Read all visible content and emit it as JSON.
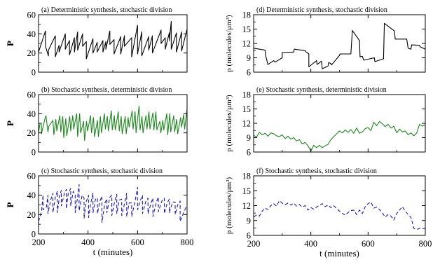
{
  "chart_data": [
    {
      "id": "a",
      "type": "line",
      "title": "(a) Deterministic synthesis, stochastic division",
      "ylabel": "P",
      "xlabel": "",
      "xlim": [
        200,
        800
      ],
      "ylim": [
        0,
        60
      ],
      "yticks": [
        0,
        20,
        40,
        60
      ],
      "xticks": [
        200,
        400,
        600,
        800
      ],
      "color": "#000000",
      "dash": false,
      "series": [
        {
          "x": [
            200,
            205,
            228,
            228,
            240,
            240,
            268,
            268,
            283,
            283,
            308,
            308,
            325,
            325,
            345,
            345,
            358,
            358,
            378,
            378,
            393,
            393,
            420,
            420,
            437,
            437,
            460,
            460,
            472,
            472,
            488,
            488,
            505,
            505,
            532,
            532,
            547,
            547,
            576,
            576,
            600,
            600,
            617,
            617,
            645,
            645,
            660,
            660,
            695,
            695,
            712,
            712,
            728,
            728,
            736,
            736,
            757,
            757,
            778,
            778,
            800
          ],
          "y": [
            21,
            25,
            43,
            27,
            17,
            23,
            38,
            16,
            28,
            21,
            40,
            24,
            33,
            18,
            36,
            21,
            42,
            23,
            40,
            27,
            32,
            14,
            35,
            20,
            31,
            21,
            33,
            21,
            32,
            24,
            43,
            29,
            34,
            19,
            37,
            19,
            38,
            27,
            36,
            16,
            49,
            19,
            42,
            17,
            37,
            23,
            38,
            20,
            44,
            30,
            36,
            24,
            41,
            33,
            53,
            24,
            41,
            21,
            42,
            22,
            45
          ]
        }
      ]
    },
    {
      "id": "b",
      "type": "line",
      "title": "(b) Stochastic synthesis, deterministic division",
      "ylabel": "P",
      "xlabel": "",
      "xlim": [
        200,
        800
      ],
      "ylim": [
        0,
        60
      ],
      "yticks": [
        0,
        20,
        40,
        60
      ],
      "xticks": [
        200,
        400,
        600,
        800
      ],
      "color": "#1a8a1a",
      "dash": false,
      "series": [
        {
          "x": [
            200,
            206,
            212,
            212,
            226,
            230,
            238,
            242,
            258,
            262,
            270,
            274,
            286,
            290,
            298,
            302,
            310,
            314,
            326,
            330,
            338,
            342,
            354,
            358,
            366,
            370,
            382,
            386,
            394,
            398,
            410,
            414,
            422,
            426,
            438,
            442,
            450,
            454,
            466,
            470,
            478,
            482,
            494,
            498,
            506,
            510,
            522,
            526,
            534,
            538,
            550,
            554,
            562,
            566,
            578,
            582,
            590,
            594,
            606,
            610,
            618,
            622,
            634,
            638,
            646,
            650,
            662,
            666,
            674,
            678,
            690,
            694,
            702,
            706,
            718,
            722,
            730,
            734,
            746,
            750,
            758,
            762,
            774,
            778,
            786,
            790,
            800
          ],
          "y": [
            20,
            30,
            30,
            19,
            35,
            38,
            21,
            27,
            33,
            18,
            34,
            22,
            38,
            21,
            37,
            15,
            35,
            17,
            37,
            22,
            38,
            24,
            40,
            16,
            40,
            20,
            32,
            12,
            32,
            22,
            38,
            20,
            36,
            16,
            33,
            16,
            37,
            20,
            40,
            24,
            37,
            22,
            43,
            23,
            38,
            23,
            42,
            22,
            37,
            19,
            37,
            19,
            36,
            26,
            43,
            24,
            42,
            20,
            48,
            23,
            37,
            20,
            38,
            24,
            42,
            24,
            41,
            23,
            42,
            23,
            32,
            20,
            33,
            23,
            40,
            18,
            40,
            21,
            38,
            21,
            34,
            19,
            36,
            26,
            39,
            24,
            45
          ]
        }
      ]
    },
    {
      "id": "c",
      "type": "line",
      "title": "(c) Stochastic synthesis, stochastic division",
      "ylabel": "P",
      "xlabel": "t (minutes)",
      "xlim": [
        200,
        800
      ],
      "ylim": [
        0,
        60
      ],
      "yticks": [
        0,
        20,
        40,
        60
      ],
      "xticks": [
        200,
        400,
        600,
        800
      ],
      "color": "#1a1acc",
      "dash": true,
      "series": [
        {
          "x": [
            200,
            212,
            218,
            218,
            232,
            238,
            238,
            250,
            258,
            258,
            268,
            276,
            276,
            285,
            292,
            292,
            304,
            312,
            312,
            320,
            330,
            330,
            340,
            348,
            348,
            358,
            364,
            364,
            376,
            384,
            384,
            392,
            402,
            402,
            412,
            420,
            420,
            430,
            438,
            438,
            448,
            456,
            456,
            468,
            476,
            476,
            488,
            496,
            496,
            508,
            516,
            516,
            526,
            536,
            536,
            548,
            556,
            556,
            566,
            576,
            576,
            590,
            600,
            600,
            612,
            620,
            620,
            634,
            642,
            642,
            656,
            662,
            662,
            676,
            684,
            684,
            698,
            708,
            708,
            720,
            728,
            728,
            742,
            752,
            752,
            762,
            772,
            772,
            786,
            800
          ],
          "y": [
            13,
            23,
            40,
            25,
            28,
            40,
            21,
            36,
            42,
            22,
            38,
            44,
            22,
            40,
            45,
            29,
            41,
            46,
            26,
            42,
            47,
            29,
            44,
            40,
            22,
            38,
            51,
            24,
            40,
            37,
            16,
            33,
            40,
            17,
            33,
            42,
            22,
            36,
            37,
            21,
            34,
            39,
            12,
            32,
            36,
            22,
            38,
            40,
            19,
            34,
            41,
            21,
            35,
            36,
            19,
            32,
            42,
            18,
            32,
            32,
            18,
            34,
            48,
            25,
            35,
            40,
            21,
            34,
            37,
            21,
            33,
            37,
            18,
            33,
            38,
            23,
            34,
            37,
            21,
            32,
            36,
            22,
            33,
            33,
            20,
            30,
            34,
            13,
            22,
            30
          ]
        }
      ]
    },
    {
      "id": "d",
      "type": "line",
      "title": "(d) Deterministic synthesis, stochastic division",
      "ylabel": "p (molecules/µm³)",
      "xlabel": "",
      "xlim": [
        200,
        800
      ],
      "ylim": [
        6,
        18
      ],
      "yticks": [
        6,
        9,
        12,
        15,
        18
      ],
      "xticks": [
        200,
        400,
        600,
        800
      ],
      "color": "#000000",
      "dash": false,
      "series": [
        {
          "x": [
            200,
            240,
            242,
            250,
            270,
            275,
            300,
            300,
            340,
            342,
            380,
            382,
            393,
            393,
            420,
            422,
            437,
            440,
            460,
            462,
            470,
            472,
            500,
            502,
            540,
            545,
            570,
            572,
            580,
            585,
            622,
            624,
            654,
            657,
            692,
            695,
            735,
            740,
            750,
            752,
            780,
            782,
            800
          ],
          "y": [
            11,
            10.6,
            9.5,
            7.6,
            8.4,
            8.1,
            9.0,
            10.1,
            10.2,
            10.8,
            10.5,
            10.3,
            9.8,
            7.1,
            8.4,
            7.6,
            8.3,
            6.7,
            7.3,
            8.0,
            7.8,
            7.5,
            9.5,
            9.8,
            9.8,
            14.7,
            12.6,
            9.2,
            9.3,
            8.5,
            9.0,
            8.2,
            8.8,
            16.2,
            14.6,
            12.9,
            12.9,
            11.0,
            10.8,
            11.7,
            11.6,
            11.3,
            10.8
          ]
        }
      ]
    },
    {
      "id": "e",
      "type": "line",
      "title": "(e) Stochastic synthesis, deterministic division",
      "ylabel": "p (molecules/µm³)",
      "xlabel": "",
      "xlim": [
        200,
        800
      ],
      "ylim": [
        6,
        18
      ],
      "yticks": [
        6,
        9,
        12,
        15,
        18
      ],
      "xticks": [
        200,
        400,
        600,
        800
      ],
      "color": "#1a8a1a",
      "dash": false,
      "series": [
        {
          "x": [
            200,
            210,
            220,
            230,
            240,
            250,
            260,
            270,
            280,
            290,
            300,
            310,
            320,
            330,
            340,
            350,
            360,
            370,
            380,
            390,
            400,
            410,
            420,
            430,
            440,
            450,
            460,
            470,
            480,
            490,
            500,
            510,
            520,
            530,
            540,
            550,
            560,
            570,
            580,
            590,
            600,
            610,
            620,
            630,
            640,
            650,
            660,
            670,
            680,
            690,
            700,
            710,
            720,
            730,
            740,
            750,
            760,
            770,
            780,
            790,
            800
          ],
          "y": [
            9.5,
            9.1,
            10.1,
            9.6,
            9.9,
            9.3,
            10.0,
            9.8,
            9.4,
            9.2,
            9.6,
            8.8,
            9.3,
            8.7,
            9.0,
            8.3,
            8.6,
            7.7,
            8.0,
            7.3,
            6.2,
            7.4,
            6.9,
            7.4,
            6.9,
            7.3,
            7.6,
            8.6,
            9.2,
            9.8,
            10.4,
            10.0,
            10.6,
            10.1,
            10.7,
            9.9,
            11.0,
            9.9,
            10.2,
            10.9,
            11.1,
            10.5,
            12.2,
            11.5,
            12.4,
            11.9,
            11.3,
            11.8,
            11.0,
            11.4,
            10.0,
            10.8,
            10.2,
            10.4,
            9.6,
            10.0,
            9.4,
            10.0,
            11.8,
            11.4,
            11.7
          ]
        }
      ]
    },
    {
      "id": "f",
      "type": "line",
      "title": "(f) Stochastic synthesis, stochastic division",
      "ylabel": "p (molecules/µm³)",
      "xlabel": "t (minutes)",
      "xlim": [
        200,
        800
      ],
      "ylim": [
        6,
        18
      ],
      "yticks": [
        6,
        9,
        12,
        15,
        18
      ],
      "xticks": [
        200,
        400,
        600,
        800
      ],
      "color": "#1a1acc",
      "dash": true,
      "series": [
        {
          "x": [
            200,
            210,
            220,
            230,
            240,
            250,
            260,
            270,
            280,
            290,
            300,
            310,
            320,
            330,
            340,
            350,
            360,
            370,
            380,
            390,
            400,
            410,
            420,
            430,
            440,
            450,
            460,
            470,
            480,
            490,
            500,
            510,
            520,
            530,
            540,
            550,
            560,
            570,
            580,
            590,
            600,
            610,
            620,
            630,
            640,
            650,
            660,
            670,
            680,
            690,
            700,
            710,
            720,
            730,
            740,
            750,
            760,
            770,
            780,
            790,
            800
          ],
          "y": [
            9.7,
            10.1,
            9.9,
            10.9,
            11.5,
            11.2,
            12.0,
            12.4,
            11.9,
            13.0,
            12.5,
            12.2,
            12.5,
            12.1,
            12.5,
            11.9,
            12.2,
            11.7,
            12.0,
            11.1,
            11.6,
            11.3,
            11.7,
            12.1,
            12.4,
            11.8,
            12.1,
            11.6,
            12.0,
            11.4,
            10.9,
            10.4,
            10.1,
            10.6,
            11.0,
            11.1,
            10.2,
            11.1,
            10.4,
            11.8,
            12.4,
            12.7,
            11.5,
            11.7,
            11.2,
            10.5,
            9.7,
            10.2,
            9.9,
            9.1,
            10.4,
            11.1,
            11.8,
            10.9,
            10.2,
            9.6,
            7.4,
            7.2,
            7.4,
            7.4,
            7.4
          ]
        }
      ]
    }
  ]
}
